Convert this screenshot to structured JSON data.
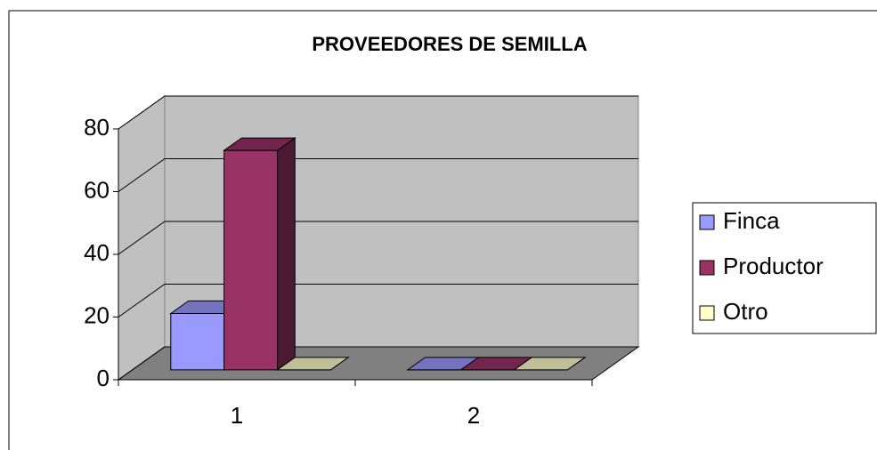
{
  "chart_data": {
    "type": "bar3d",
    "title": "PROVEEDORES DE SEMILLA",
    "categories": [
      "1",
      "2"
    ],
    "series": [
      {
        "name": "Finca",
        "color": "#9999ff",
        "values": [
          18,
          0
        ]
      },
      {
        "name": "Productor",
        "color": "#993366",
        "values": [
          70,
          0
        ]
      },
      {
        "name": "Otro",
        "color": "#ffffcc",
        "values": [
          0,
          0
        ]
      }
    ],
    "ylim": [
      0,
      80
    ],
    "yticks": [
      0,
      20,
      40,
      60,
      80
    ],
    "grid": true,
    "legend": "right"
  }
}
